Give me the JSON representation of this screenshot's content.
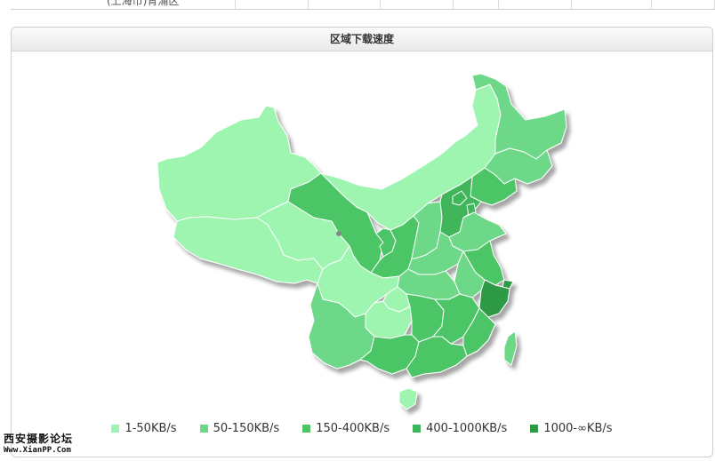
{
  "top_row": {
    "partial_text": "(上海市)青浦区"
  },
  "panel": {
    "title": "区域下载速度"
  },
  "legend": [
    {
      "label": "1-50KB/s",
      "color": "#9ef5b0"
    },
    {
      "label": "50-150KB/s",
      "color": "#6ed889"
    },
    {
      "label": "150-400KB/s",
      "color": "#4cc565"
    },
    {
      "label": "400-1000KB/s",
      "color": "#3fb55a"
    },
    {
      "label": "1000-∞KB/s",
      "color": "#2d9a45"
    }
  ],
  "regions": [
    {
      "id": "xinjiang",
      "class": 0
    },
    {
      "id": "xizang",
      "class": 0
    },
    {
      "id": "qinghai",
      "class": 0
    },
    {
      "id": "gansu",
      "class": 2
    },
    {
      "id": "neimenggu",
      "class": 0
    },
    {
      "id": "ningxia",
      "class": 2
    },
    {
      "id": "shaanxi",
      "class": 2
    },
    {
      "id": "shanxi",
      "class": 1
    },
    {
      "id": "hebei",
      "class": 3
    },
    {
      "id": "beijing",
      "class": 3
    },
    {
      "id": "tianjin",
      "class": 3
    },
    {
      "id": "heilongjiang",
      "class": 1
    },
    {
      "id": "jilin",
      "class": 1
    },
    {
      "id": "liaoning",
      "class": 2
    },
    {
      "id": "shandong",
      "class": 1
    },
    {
      "id": "henan",
      "class": 1
    },
    {
      "id": "jiangsu",
      "class": 2
    },
    {
      "id": "anhui",
      "class": 1
    },
    {
      "id": "shanghai",
      "class": 4
    },
    {
      "id": "zhejiang",
      "class": 4
    },
    {
      "id": "hubei",
      "class": 1
    },
    {
      "id": "sichuan",
      "class": 0
    },
    {
      "id": "chongqing",
      "class": 0
    },
    {
      "id": "guizhou",
      "class": 0
    },
    {
      "id": "yunnan",
      "class": 1
    },
    {
      "id": "hunan",
      "class": 2
    },
    {
      "id": "jiangxi",
      "class": 2
    },
    {
      "id": "fujian",
      "class": 2
    },
    {
      "id": "guangxi",
      "class": 2
    },
    {
      "id": "guangdong",
      "class": 2
    },
    {
      "id": "hainan",
      "class": 0
    },
    {
      "id": "taiwan",
      "class": 1
    }
  ],
  "watermark": {
    "line1": "西安摄影论坛",
    "line2": "Www.XianPP.Com"
  }
}
